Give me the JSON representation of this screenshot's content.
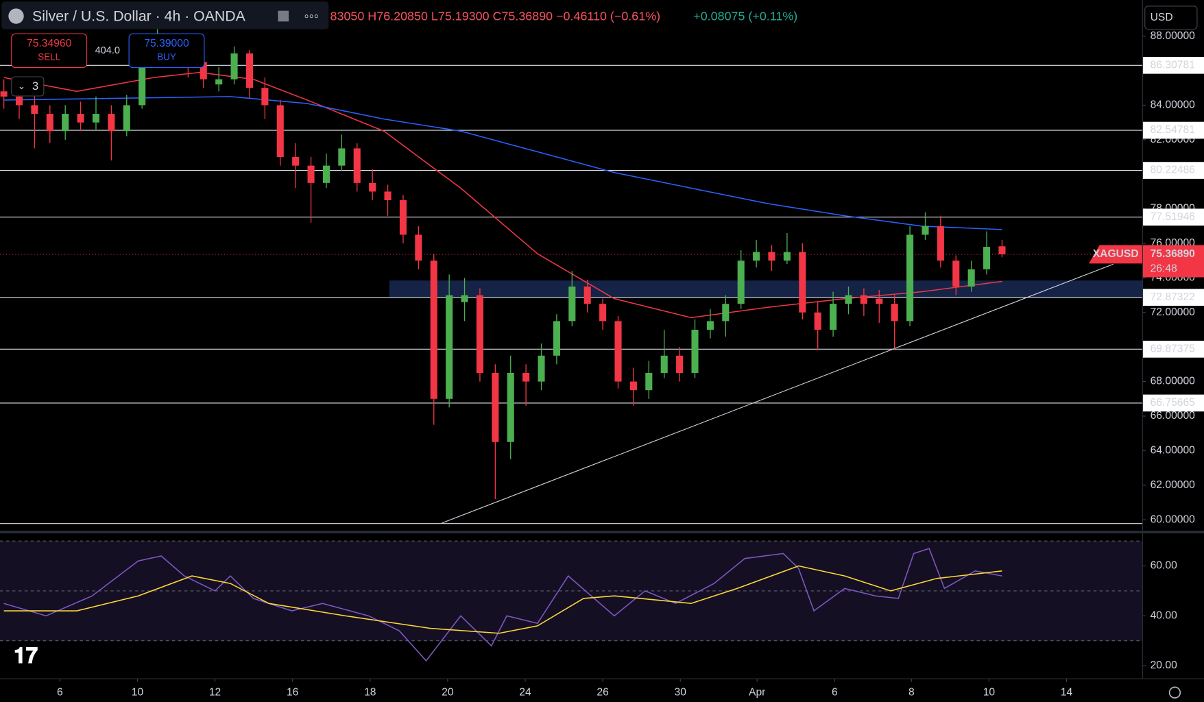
{
  "header": {
    "title": "Silver / U.S. Dollar · 4h · OANDA",
    "ohlc": "83050 H76.20850 L75.19300 C75.36890 −0.46110 (−0.61%)",
    "ext_change": "+0.08075 (+0.11%)",
    "sell_price": "75.34960",
    "sell": "SELL",
    "spread": "404.0",
    "buy_price": "75.39000",
    "buy": "BUY",
    "indicators": "3",
    "currency": "USD"
  },
  "chart_data": [
    {
      "type": "candlestick",
      "open": [
        84.8,
        84.5,
        84,
        83.5,
        82.5,
        83.5,
        83,
        83.5,
        82.5,
        84,
        86.5,
        87.5,
        87,
        86.5,
        85.2,
        85.5,
        87,
        85,
        84,
        81,
        80.5,
        79.5,
        80.5,
        81.5,
        79.5,
        79,
        78.5,
        76.5,
        75,
        67,
        72.6,
        73,
        68.5,
        64.5,
        68.5,
        68,
        69.5,
        71.5,
        73.5,
        72.5,
        71.5,
        68,
        67.5,
        68.5,
        69.5,
        68.5,
        71,
        71.5,
        72.5,
        75,
        75.5,
        75,
        75.5,
        72,
        71,
        72.5,
        73,
        72.8,
        72.5,
        71.5,
        76.5,
        77,
        75,
        73.5,
        74.5,
        75.8305
      ],
      "high": [
        85.5,
        85,
        84.6,
        84,
        84,
        84.2,
        84.5,
        84,
        84.6,
        87,
        88.5,
        88,
        87.4,
        87,
        86.2,
        87.4,
        87.2,
        85.6,
        84.3,
        81.8,
        81,
        81.2,
        82.3,
        81.8,
        80.3,
        79.4,
        78.8,
        77,
        75.4,
        74.2,
        74,
        73.4,
        69,
        69.5,
        69,
        70.2,
        71.9,
        74.4,
        73.9,
        72.8,
        71.8,
        68.8,
        69.2,
        71,
        70,
        71.6,
        72.2,
        73,
        75.6,
        76.2,
        75.9,
        76.6,
        76,
        72.6,
        73.2,
        73.5,
        73.4,
        73.3,
        73,
        77,
        77.8,
        77.6,
        75.3,
        75,
        76.7,
        76.2085
      ],
      "low": [
        83.8,
        83.2,
        81.5,
        81.8,
        82,
        82.5,
        82.6,
        80.8,
        82.2,
        83.8,
        86.2,
        86.4,
        85.6,
        85,
        84.8,
        85.2,
        84.4,
        83.2,
        80.5,
        79.2,
        77.2,
        79.2,
        80.2,
        79,
        78.5,
        77.6,
        76,
        74.5,
        65.5,
        66.5,
        71.5,
        68,
        61.2,
        63.5,
        66.6,
        67.5,
        69,
        71.2,
        72,
        71,
        67.6,
        66.6,
        67,
        68.2,
        68,
        68.2,
        70.5,
        70.6,
        72.2,
        74.6,
        74.4,
        74.8,
        71.6,
        69.8,
        70.6,
        71.9,
        71.8,
        71.4,
        69.9,
        71.2,
        76.2,
        74.6,
        73,
        73.2,
        74.2,
        75.193
      ],
      "close": [
        84.5,
        84,
        83.5,
        82.5,
        83.5,
        83,
        83.5,
        82.5,
        84,
        86.5,
        87.5,
        87,
        86.5,
        85.5,
        85.5,
        87,
        85,
        84,
        81,
        80.5,
        79.5,
        80.5,
        81.5,
        79.5,
        79,
        78.5,
        76.5,
        75,
        67,
        73,
        73,
        68.5,
        64.5,
        68.5,
        68,
        69.5,
        71.5,
        73.5,
        72.5,
        71.5,
        68,
        67.5,
        68.5,
        69.5,
        68.5,
        71,
        71.5,
        72.5,
        75,
        75.5,
        75,
        75.5,
        72,
        71,
        72.5,
        73,
        72.5,
        72.5,
        71.5,
        76.5,
        77,
        75,
        73.5,
        74.5,
        75.8,
        75.3689
      ],
      "up_color": "#4caf50",
      "down_color": "#f23645",
      "series": [
        {
          "color": "#f23645",
          "x": [
            0,
            4.75,
            9.75,
            12.75,
            16.25,
            19.75,
            24.75,
            29.75,
            34.75,
            39.75,
            44.75,
            49.75,
            54.75,
            59.75,
            65
          ],
          "values": [
            85.6,
            84.8,
            85.6,
            85.9,
            85.5,
            84.3,
            82.5,
            79.2,
            75.4,
            72.8,
            71.7,
            72.3,
            72.8,
            73.2,
            73.8
          ]
        },
        {
          "color": "#2962ff",
          "x": [
            0,
            14.75,
            19.75,
            24.75,
            29.75,
            34.75,
            39.75,
            44.75,
            49.75,
            54.75,
            59.75,
            65
          ],
          "values": [
            84.3,
            84.5,
            84.1,
            83.2,
            82.5,
            81.3,
            80.1,
            79.2,
            78.3,
            77.6,
            77,
            76.8
          ]
        }
      ],
      "levels": [
        86.30781,
        82.54781,
        80.22486,
        77.51946,
        72.87322,
        69.87375,
        66.75665
      ],
      "zone": {
        "x": 25.1,
        "y": [
          72.87322,
          73.85
        ]
      },
      "trendline": {
        "x": [
          28.5,
          72.25
        ],
        "y": [
          59.8,
          74.8
        ]
      },
      "last": {
        "symbol": "XAGUSD",
        "value": 75.3689,
        "label": "75.36890",
        "countdown": "26:48"
      },
      "xlim": [
        -0.25,
        74.15
      ],
      "xticks": [
        {
          "value": 3.65,
          "label": "6"
        },
        {
          "value": 8.7,
          "label": "10"
        },
        {
          "value": 13.75,
          "label": "12"
        },
        {
          "value": 18.8,
          "label": "16"
        },
        {
          "value": 23.85,
          "label": "18"
        },
        {
          "value": 28.9,
          "label": "20"
        },
        {
          "value": 33.95,
          "label": "24"
        },
        {
          "value": 39,
          "label": "26"
        },
        {
          "value": 44.05,
          "label": "30"
        },
        {
          "value": 49.05,
          "label": "Apr"
        },
        {
          "value": 54.1,
          "label": "6"
        },
        {
          "value": 59.1,
          "label": "8"
        },
        {
          "value": 64.15,
          "label": "10"
        },
        {
          "value": 69.2,
          "label": "14"
        }
      ],
      "ylim": [
        59.33,
        90.09
      ],
      "yticks": [
        {
          "value": 60,
          "label": "60.00000"
        },
        {
          "value": 62,
          "label": "62.00000"
        },
        {
          "value": 64,
          "label": "64.00000"
        },
        {
          "value": 66,
          "label": "66.00000"
        },
        {
          "value": 68,
          "label": "68.00000"
        },
        {
          "value": 70,
          "label": "70.00000"
        },
        {
          "value": 72,
          "label": "72.00000"
        },
        {
          "value": 74,
          "label": "74.00000"
        },
        {
          "value": 76,
          "label": "76.00000"
        },
        {
          "value": 78,
          "label": "78.00000"
        },
        {
          "value": 80,
          "label": "80.00000"
        },
        {
          "value": 82,
          "label": "82.00000"
        },
        {
          "value": 84,
          "label": "84.00000"
        },
        {
          "value": 86,
          "label": "86.00000"
        },
        {
          "value": 88,
          "label": "88.00000"
        }
      ]
    },
    {
      "type": "line",
      "series": [
        {
          "color": "#7e57c2",
          "x": [
            0,
            2.75,
            5.75,
            8.75,
            10.25,
            11.75,
            13.75,
            14.75,
            16.25,
            18.75,
            20.75,
            23.75,
            25.75,
            27.5,
            29.75,
            31.75,
            32.75,
            34.75,
            36.75,
            39.75,
            41.75,
            43.75,
            46.25,
            48.25,
            50.75,
            51.75,
            52.75,
            54.75,
            56.75,
            58.25,
            59.25,
            60.25,
            61.25,
            63.25,
            65
          ],
          "values": [
            45,
            40,
            48,
            62,
            64,
            56,
            50,
            56,
            47,
            42,
            45,
            40,
            34,
            22,
            40,
            28,
            40,
            37,
            56,
            40,
            50,
            45,
            53,
            63,
            65,
            59,
            42,
            51,
            48,
            47,
            65,
            67,
            51,
            58,
            56
          ]
        },
        {
          "color": "#fdd835",
          "x": [
            0,
            4.75,
            8.75,
            12.25,
            14.75,
            17.25,
            22.25,
            27.75,
            32.25,
            34.75,
            37.75,
            39.75,
            44.75,
            47.75,
            51.75,
            54.75,
            57.75,
            60.75,
            65
          ],
          "values": [
            42,
            42,
            48,
            56,
            53,
            45,
            40,
            35,
            33,
            36,
            47,
            48,
            45,
            51,
            60,
            56,
            50,
            55,
            58
          ]
        }
      ],
      "bands": [
        30,
        50,
        70
      ],
      "xlim": [
        -0.25,
        74.15
      ],
      "ylim": [
        15.1,
        70.5
      ],
      "yticks": [
        {
          "value": 20,
          "label": "20.00"
        },
        {
          "value": 40,
          "label": "40.00"
        },
        {
          "value": 60,
          "label": "60.00"
        }
      ]
    }
  ]
}
